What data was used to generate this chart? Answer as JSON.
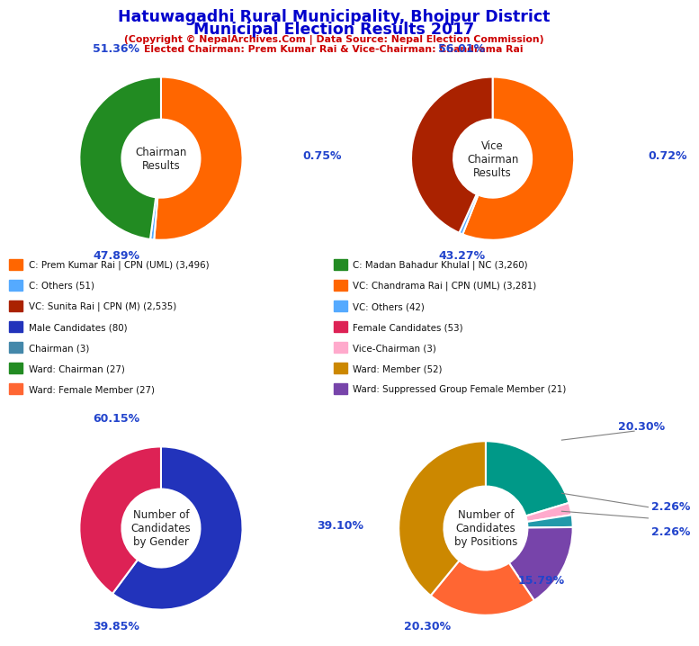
{
  "title_line1": "Hatuwagadhi Rural Municipality, Bhojpur District",
  "title_line2": "Municipal Election Results 2017",
  "subtitle1": "(Copyright © NepalArchives.Com | Data Source: Nepal Election Commission)",
  "subtitle2": "Elected Chairman: Prem Kumar Rai & Vice-Chairman: Chandrama Rai",
  "title_color": "#0000cc",
  "subtitle_color": "#cc0000",
  "chairman": {
    "values": [
      51.36,
      0.75,
      47.89
    ],
    "colors": [
      "#ff6600",
      "#55aaff",
      "#228B22"
    ],
    "center_text": "Chairman\nResults",
    "pct_top": "51.36%",
    "pct_right": "0.75%",
    "pct_bottom": "47.89%"
  },
  "vice_chairman": {
    "values": [
      56.01,
      0.72,
      43.27
    ],
    "colors": [
      "#ff6600",
      "#55aaff",
      "#aa2200"
    ],
    "center_text": "Vice\nChairman\nResults",
    "pct_top": "56.01%",
    "pct_right": "0.72%",
    "pct_bottom": "43.27%"
  },
  "gender": {
    "values": [
      60.15,
      39.85
    ],
    "colors": [
      "#2233bb",
      "#dd2255"
    ],
    "center_text": "Number of\nCandidates\nby Gender",
    "pct_top": "60.15%",
    "pct_bottom": "39.85%"
  },
  "positions": {
    "values": [
      39.1,
      20.3,
      15.79,
      2.26,
      2.26,
      20.3
    ],
    "colors": [
      "#cc8800",
      "#ff6633",
      "#7744aa",
      "#2299aa",
      "#ffaacc",
      "#009988"
    ],
    "center_text": "Number of\nCandidates\nby Positions",
    "labels": [
      "39.10%",
      "20.30%",
      "15.79%",
      "2.26%",
      "2.26%",
      "20.30%"
    ]
  },
  "legend_items": [
    {
      "label": "C: Prem Kumar Rai | CPN (UML) (3,496)",
      "color": "#ff6600"
    },
    {
      "label": "C: Others (51)",
      "color": "#55aaff"
    },
    {
      "label": "VC: Sunita Rai | CPN (M) (2,535)",
      "color": "#aa2200"
    },
    {
      "label": "Male Candidates (80)",
      "color": "#2233bb"
    },
    {
      "label": "Chairman (3)",
      "color": "#4488aa"
    },
    {
      "label": "Ward: Chairman (27)",
      "color": "#228B22"
    },
    {
      "label": "Ward: Female Member (27)",
      "color": "#ff6633"
    },
    {
      "label": "C: Madan Bahadur Khulal | NC (3,260)",
      "color": "#228B22"
    },
    {
      "label": "VC: Chandrama Rai | CPN (UML) (3,281)",
      "color": "#ff6600"
    },
    {
      "label": "VC: Others (42)",
      "color": "#55aaff"
    },
    {
      "label": "Female Candidates (53)",
      "color": "#dd2255"
    },
    {
      "label": "Vice-Chairman (3)",
      "color": "#ffaacc"
    },
    {
      "label": "Ward: Member (52)",
      "color": "#cc8800"
    },
    {
      "label": "Ward: Suppressed Group Female Member (21)",
      "color": "#7744aa"
    }
  ]
}
